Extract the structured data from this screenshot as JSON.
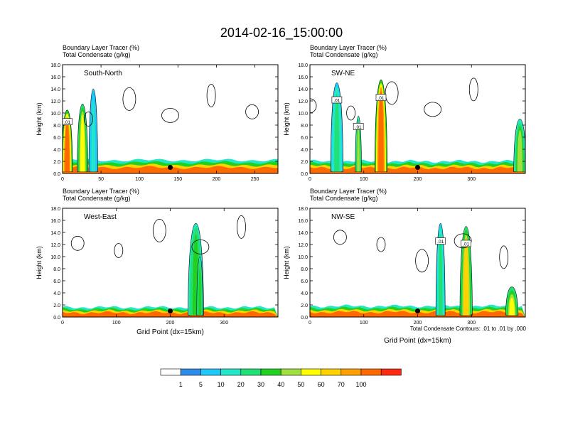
{
  "figure": {
    "title": "2014-02-16_15:00:00",
    "contour_note": "Total Condensate Contours: .01 to .01 by .000"
  },
  "colorbar": {
    "labels": [
      "1",
      "5",
      "10",
      "20",
      "30",
      "40",
      "50",
      "60",
      "70",
      "100"
    ],
    "colors": [
      "#ffffff",
      "#2e8de8",
      "#1ec8f8",
      "#22e8c8",
      "#22e078",
      "#22d022",
      "#a0e040",
      "#ffff00",
      "#ffd200",
      "#ffa000",
      "#ff6a00",
      "#ff2a14"
    ]
  },
  "chart_data": [
    {
      "type": "heatmap",
      "name": "South-North",
      "subtitle_line1": "Boundary Layer Tracer   (%)",
      "subtitle_line2": "Total Condensate   (g/kg)",
      "ylabel": "Height (km)",
      "xlabel": "",
      "xlim": [
        0,
        280
      ],
      "ylim": [
        0,
        18
      ],
      "xticks": [
        "0",
        "50",
        "100",
        "150",
        "200",
        "250"
      ],
      "xtick_values": [
        0,
        50,
        100,
        150,
        200,
        250
      ],
      "yticks": [
        "0.0",
        "2.0",
        "4.0",
        "6.0",
        "8.0",
        "10.0",
        "12.0",
        "14.0",
        "16.0",
        "18.0"
      ],
      "marker_x": 140,
      "contour_labels": [
        ".01"
      ],
      "surface_band": {
        "base_height": 1.0,
        "top_height": 2.2
      },
      "tracer_columns": [
        {
          "x_from": 0,
          "x_to": 12,
          "height": 10.5,
          "intensity": 90
        },
        {
          "x_from": 20,
          "x_to": 32,
          "height": 11.5,
          "intensity": 40
        },
        {
          "x_from": 35,
          "x_to": 45,
          "height": 14.0,
          "intensity": 5
        }
      ]
    },
    {
      "type": "heatmap",
      "name": "SW-NE",
      "subtitle_line1": "Boundary Layer Tracer   (%)",
      "subtitle_line2": "Total Condensate   (g/kg)",
      "ylabel": "Height (km)",
      "xlabel": "",
      "xlim": [
        0,
        400
      ],
      "ylim": [
        0,
        18
      ],
      "xticks": [
        "0",
        "100",
        "200",
        "300"
      ],
      "xtick_values": [
        0,
        100,
        200,
        300
      ],
      "yticks": [
        "0.0",
        "2.0",
        "4.0",
        "6.0",
        "8.0",
        "10.0",
        "12.0",
        "14.0",
        "16.0",
        "18.0"
      ],
      "marker_x": 200,
      "contour_labels": [
        ".01",
        ".01",
        ".01"
      ],
      "surface_band": {
        "base_height": 1.0,
        "top_height": 2.0
      },
      "tracer_columns": [
        {
          "x_from": 40,
          "x_to": 60,
          "height": 15.0,
          "intensity": 10
        },
        {
          "x_from": 85,
          "x_to": 95,
          "height": 9.5,
          "intensity": 30
        },
        {
          "x_from": 122,
          "x_to": 142,
          "height": 15.5,
          "intensity": 90
        },
        {
          "x_from": 380,
          "x_to": 400,
          "height": 9.0,
          "intensity": 30
        }
      ]
    },
    {
      "type": "heatmap",
      "name": "West-East",
      "subtitle_line1": "Boundary Layer Tracer   (%)",
      "subtitle_line2": "Total Condensate   (g/kg)",
      "ylabel": "Height (km)",
      "xlabel": "Grid Point (dx=15km)",
      "xlim": [
        0,
        400
      ],
      "ylim": [
        0,
        18
      ],
      "xticks": [
        "0",
        "100",
        "200",
        "300"
      ],
      "xtick_values": [
        0,
        100,
        200,
        300
      ],
      "yticks": [
        "0.0",
        "2.0",
        "4.0",
        "6.0",
        "8.0",
        "10.0",
        "12.0",
        "14.0",
        "16.0",
        "18.0"
      ],
      "marker_x": 200,
      "contour_labels": [],
      "surface_band": {
        "base_height": 0.8,
        "top_height": 1.6
      },
      "tracer_columns": [
        {
          "x_from": 235,
          "x_to": 260,
          "height": 15.5,
          "intensity": 20
        },
        {
          "x_from": 250,
          "x_to": 260,
          "height": 10.0,
          "intensity": 20
        }
      ]
    },
    {
      "type": "heatmap",
      "name": "NW-SE",
      "subtitle_line1": "Boundary Layer Tracer   (%)",
      "subtitle_line2": "Total Condensate   (g/kg)",
      "ylabel": "Height (km)",
      "xlabel": "Grid Point (dx=15km)",
      "xlim": [
        0,
        400
      ],
      "ylim": [
        0,
        18
      ],
      "xticks": [
        "0",
        "100",
        "200",
        "300"
      ],
      "xtick_values": [
        0,
        100,
        200,
        300
      ],
      "yticks": [
        "0.0",
        "2.0",
        "4.0",
        "6.0",
        "8.0",
        "10.0",
        "12.0",
        "14.0",
        "16.0",
        "18.0"
      ],
      "marker_x": 200,
      "contour_labels": [
        ".01",
        ".01"
      ],
      "surface_band": {
        "base_height": 0.8,
        "top_height": 1.8
      },
      "tracer_columns": [
        {
          "x_from": 235,
          "x_to": 250,
          "height": 15.5,
          "intensity": 10
        },
        {
          "x_from": 280,
          "x_to": 300,
          "height": 15.0,
          "intensity": 50
        },
        {
          "x_from": 365,
          "x_to": 385,
          "height": 5.0,
          "intensity": 40
        }
      ]
    }
  ]
}
